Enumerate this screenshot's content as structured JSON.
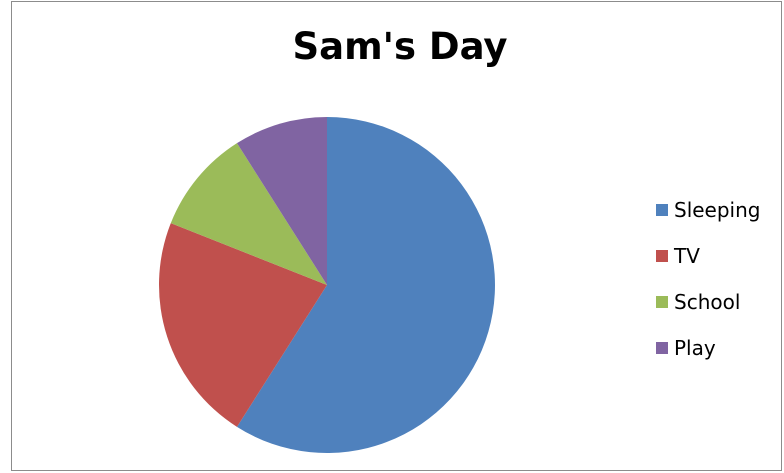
{
  "chart_data": {
    "type": "pie",
    "title": "Sam's Day",
    "categories": [
      "Sleeping",
      "TV",
      "School",
      "Play"
    ],
    "values": [
      59,
      22,
      10,
      9
    ],
    "colors": [
      "#4f81bd",
      "#c0504d",
      "#9bbb59",
      "#8064a2"
    ],
    "legend_position": "right"
  }
}
